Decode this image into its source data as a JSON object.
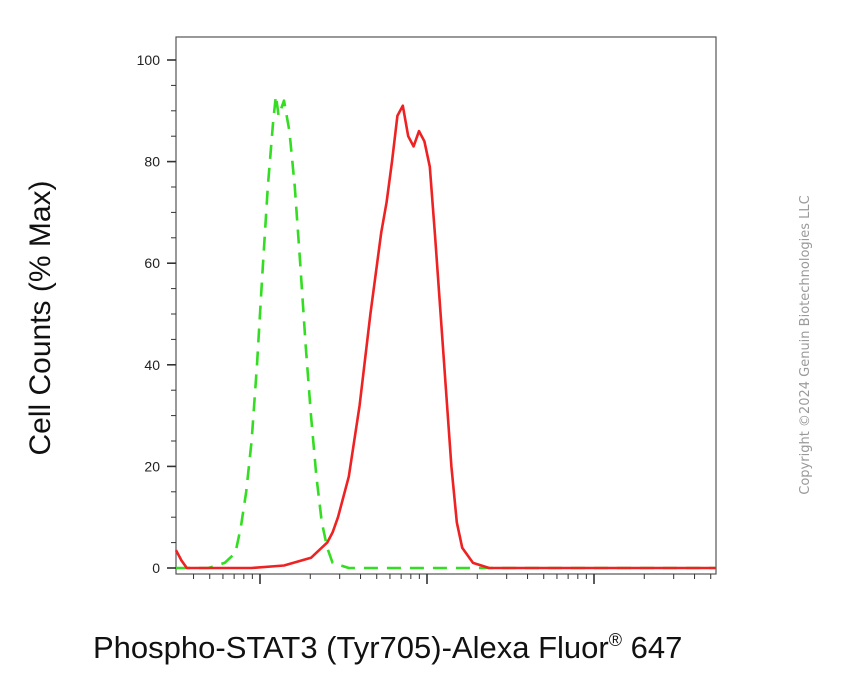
{
  "chart_data": {
    "type": "line",
    "title": "",
    "xlabel": "Phospho-STAT3 (Tyr705)-Alexa Fluor",
    "xlabel_superscript": "®",
    "xlabel_suffix": " 647",
    "ylabel": "Cell Counts (% Max)",
    "ylim": [
      0,
      105
    ],
    "xscale": "log",
    "grid": false,
    "yticks": [
      0,
      20,
      40,
      60,
      80,
      100
    ],
    "ytick_labels": [
      "0",
      "20",
      "40",
      "60",
      "80",
      "100"
    ],
    "series": [
      {
        "style": "dashed",
        "color": "#33dd22",
        "points": [
          [
            0.0,
            0
          ],
          [
            0.03,
            0
          ],
          [
            0.06,
            0
          ],
          [
            0.09,
            1
          ],
          [
            0.11,
            3
          ],
          [
            0.12,
            8
          ],
          [
            0.13,
            15
          ],
          [
            0.14,
            25
          ],
          [
            0.15,
            40
          ],
          [
            0.16,
            58
          ],
          [
            0.17,
            75
          ],
          [
            0.18,
            88
          ],
          [
            0.185,
            93
          ],
          [
            0.19,
            89
          ],
          [
            0.2,
            92
          ],
          [
            0.21,
            86
          ],
          [
            0.22,
            75
          ],
          [
            0.23,
            60
          ],
          [
            0.24,
            44
          ],
          [
            0.25,
            30
          ],
          [
            0.26,
            18
          ],
          [
            0.27,
            9
          ],
          [
            0.28,
            4
          ],
          [
            0.29,
            1
          ],
          [
            0.32,
            0
          ],
          [
            1.0,
            0
          ]
        ]
      },
      {
        "style": "solid",
        "color": "#ee2222",
        "points": [
          [
            0.0,
            3.5
          ],
          [
            0.01,
            1.5
          ],
          [
            0.02,
            0
          ],
          [
            0.14,
            0
          ],
          [
            0.2,
            0.5
          ],
          [
            0.25,
            2
          ],
          [
            0.28,
            5
          ],
          [
            0.29,
            7
          ],
          [
            0.3,
            10
          ],
          [
            0.32,
            18
          ],
          [
            0.34,
            32
          ],
          [
            0.36,
            50
          ],
          [
            0.38,
            66
          ],
          [
            0.39,
            72
          ],
          [
            0.4,
            80
          ],
          [
            0.41,
            89
          ],
          [
            0.42,
            91
          ],
          [
            0.43,
            85
          ],
          [
            0.44,
            83
          ],
          [
            0.45,
            86
          ],
          [
            0.46,
            84
          ],
          [
            0.47,
            79
          ],
          [
            0.48,
            65
          ],
          [
            0.49,
            50
          ],
          [
            0.5,
            35
          ],
          [
            0.51,
            20
          ],
          [
            0.52,
            9
          ],
          [
            0.53,
            4
          ],
          [
            0.55,
            1
          ],
          [
            0.58,
            0
          ],
          [
            1.0,
            0
          ]
        ]
      }
    ]
  },
  "copyright": "Copyright ©2024 Genuin Biotechnologies LLC"
}
